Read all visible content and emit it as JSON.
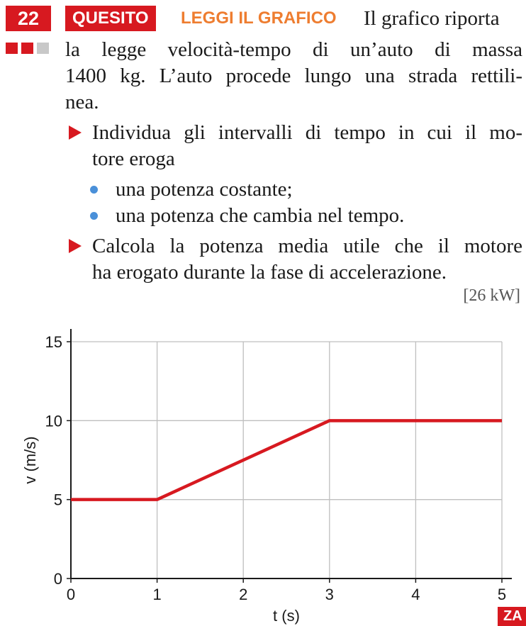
{
  "exercise": {
    "number": "22",
    "tag_quesito": "QUESITO",
    "tag_grafico": "LEGGI IL GRAFICO",
    "intro_lines": [
      "Il grafico riporta",
      "la legge velocità-tempo di un’auto di massa",
      "1400 kg. L’auto procede lungo una strada rettili-",
      "nea."
    ],
    "task1_lines": [
      "Individua gli intervalli di tempo in cui il mo-",
      "tore eroga"
    ],
    "sub_items": [
      "una potenza costante;",
      "una potenza che cambia nel tempo."
    ],
    "task2_lines": [
      "Calcola la potenza media utile che il motore",
      "ha erogato durante la fase di accelerazione."
    ],
    "answer": "[26 kW]",
    "publisher_mark": "ZA",
    "colors": {
      "accent_red": "#d71920",
      "accent_orange": "#ee7d30",
      "bullet_blue": "#4a90d9"
    }
  },
  "chart_data": {
    "type": "line",
    "xlabel": "t (s)",
    "ylabel": "v (m/s)",
    "xlim": [
      0,
      5
    ],
    "ylim": [
      0,
      15
    ],
    "x_ticks": [
      "0",
      "1",
      "2",
      "3",
      "4",
      "5"
    ],
    "y_ticks": [
      "0",
      "5",
      "10",
      "15"
    ],
    "grid": true,
    "series": [
      {
        "color": "#d71920",
        "x": [
          0,
          1,
          3,
          5
        ],
        "y": [
          5,
          5,
          10,
          10
        ]
      }
    ]
  }
}
